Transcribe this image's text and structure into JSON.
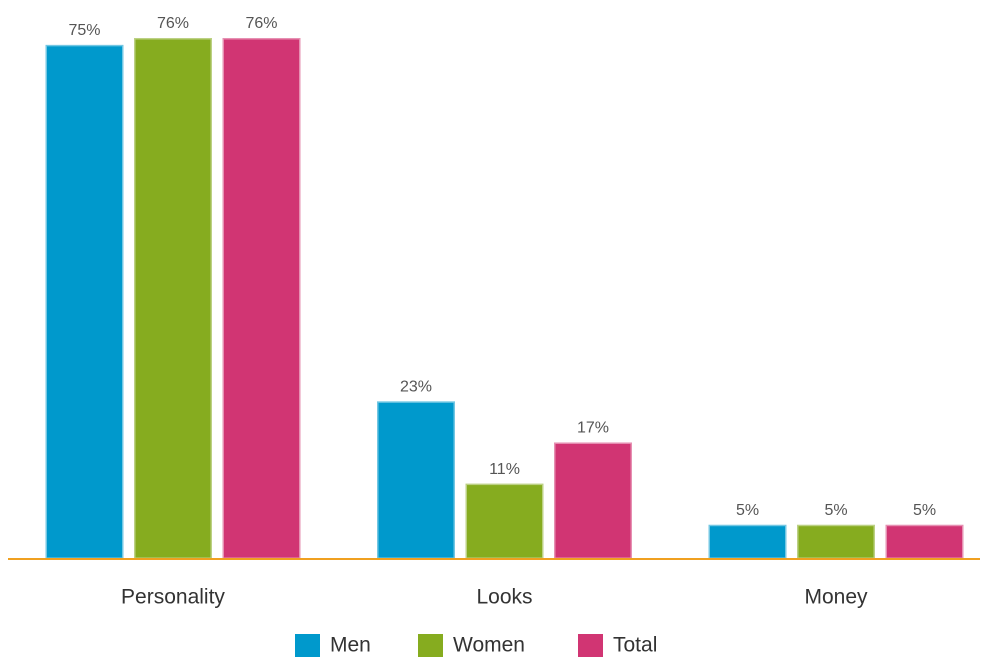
{
  "chart_data": {
    "type": "bar",
    "categories": [
      "Personality",
      "Looks",
      "Money"
    ],
    "series": [
      {
        "name": "Men",
        "color": "#0099cc",
        "values": [
          75,
          23,
          5
        ],
        "value_labels": [
          "75%",
          "23%",
          "5%"
        ]
      },
      {
        "name": "Women",
        "color": "#86ac1f",
        "values": [
          76,
          11,
          5
        ],
        "value_labels": [
          "76%",
          "11%",
          "5%"
        ]
      },
      {
        "name": "Total",
        "color": "#d13573",
        "values": [
          76,
          17,
          5
        ],
        "value_labels": [
          "76%",
          "17%",
          "5%"
        ]
      }
    ],
    "legend": "bottom"
  }
}
